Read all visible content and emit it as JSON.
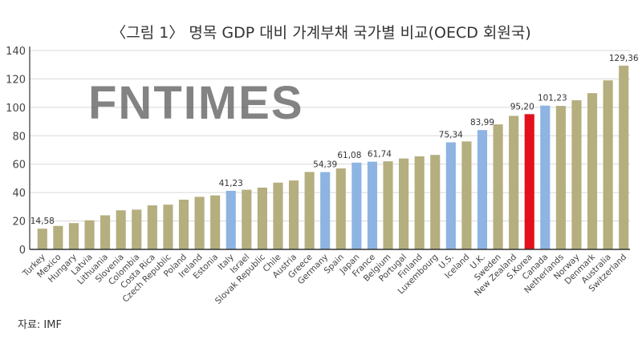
{
  "chart_data": {
    "type": "bar",
    "title": "〈그림 1〉 명목 GDP 대비 가계부채 국가별 비교(OECD 회원국)",
    "xlabel": "",
    "ylabel": "",
    "ylim": [
      0,
      140
    ],
    "yticks": [
      0,
      20,
      40,
      60,
      80,
      100,
      120,
      140
    ],
    "grid": true,
    "categories": [
      "Turkey",
      "Mexico",
      "Hungary",
      "Latvia",
      "Lithuania",
      "Slovenia",
      "Colombia",
      "Costa Rica",
      "Czech Republic",
      "Poland",
      "Ireland",
      "Estonia",
      "Italy",
      "Israel",
      "Slovak Republic",
      "Chile",
      "Austria",
      "Greece",
      "Germany",
      "Spain",
      "Japan",
      "France",
      "Belgium",
      "Portugal",
      "Finland",
      "Luxembourg",
      "U.S.",
      "Iceland",
      "U.K.",
      "Sweden",
      "New Zealand",
      "S.Korea",
      "Canada",
      "Netherlands",
      "Norway",
      "Denmark",
      "Australia",
      "Switzerland"
    ],
    "values": [
      14.58,
      16.5,
      18.5,
      20.5,
      24,
      27.5,
      28,
      31,
      31.5,
      35,
      37,
      38,
      41.23,
      42,
      43.5,
      47,
      48.5,
      54.5,
      54.39,
      57,
      61.08,
      61.74,
      62,
      64,
      65.5,
      66.5,
      75.34,
      76,
      83.99,
      88,
      94,
      95.2,
      101.23,
      101,
      105,
      110,
      119,
      129.36
    ],
    "bar_types": [
      "n",
      "n",
      "n",
      "n",
      "n",
      "n",
      "n",
      "n",
      "n",
      "n",
      "n",
      "n",
      "h",
      "n",
      "n",
      "n",
      "n",
      "n",
      "h",
      "n",
      "h",
      "h",
      "n",
      "n",
      "n",
      "n",
      "h",
      "n",
      "h",
      "n",
      "n",
      "k",
      "h",
      "n",
      "n",
      "n",
      "n",
      "n"
    ],
    "data_labels": {
      "0": "14,58",
      "12": "41,23",
      "18": "54,39",
      "20": "61,08",
      "21": "61,74",
      "26": "75,34",
      "28": "83,99",
      "31": "95,20",
      "32": "101,23",
      "37": "129,36"
    },
    "colors": {
      "n": "#b5ae7f",
      "h": "#8db4e2",
      "k": "#e3101c"
    },
    "source": "자료: IMF"
  },
  "watermark": "FNTIMES"
}
